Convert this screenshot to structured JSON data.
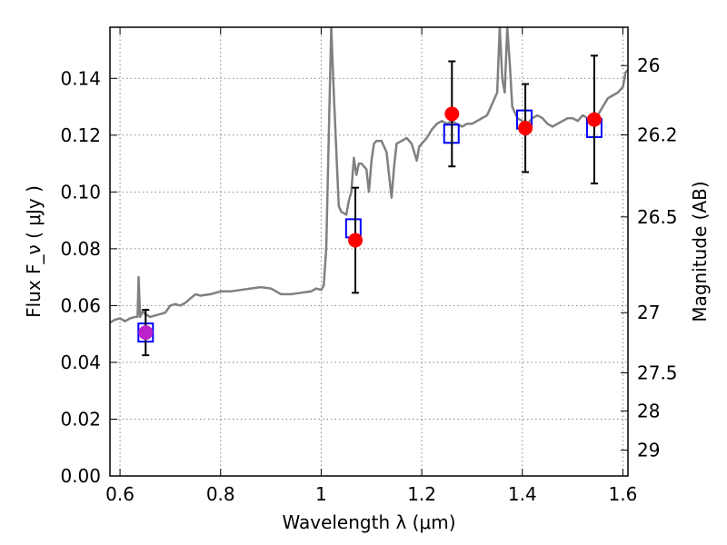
{
  "chart_data": {
    "type": "scatter",
    "xlabel": "Wavelength  λ (μm)",
    "ylabel_left": "Flux  F_ν  ( μJy )",
    "ylabel_right": "Magnitude (AB)",
    "xlim": [
      0.58,
      1.61
    ],
    "ylim": [
      0.0,
      0.158
    ],
    "grid": true,
    "x_ticks": [
      0.6,
      0.8,
      1.0,
      1.2,
      1.4,
      1.6
    ],
    "x_tick_labels": [
      "0.6",
      "0.8",
      "1",
      "1.2",
      "1.4",
      "1.6"
    ],
    "y_ticks": [
      0.0,
      0.02,
      0.04,
      0.06,
      0.08,
      0.1,
      0.12,
      0.14
    ],
    "y_tick_labels": [
      "0.00",
      "0.02",
      "0.04",
      "0.06",
      "0.08",
      "0.10",
      "0.12",
      "0.14"
    ],
    "right_ticks": [
      {
        "flux": 0.1445,
        "label": "26"
      },
      {
        "flux": 0.1201,
        "label": "26.2"
      },
      {
        "flux": 0.0912,
        "label": "26.5"
      },
      {
        "flux": 0.0575,
        "label": "27"
      },
      {
        "flux": 0.0363,
        "label": "27.5"
      },
      {
        "flux": 0.0229,
        "label": "28"
      },
      {
        "flux": 0.0091,
        "label": "29"
      }
    ],
    "series": [
      {
        "kind": "spectrum",
        "color": "#808080",
        "points": [
          [
            0.58,
            0.054
          ],
          [
            0.59,
            0.055
          ],
          [
            0.6,
            0.0555
          ],
          [
            0.61,
            0.0545
          ],
          [
            0.62,
            0.0555
          ],
          [
            0.63,
            0.056
          ],
          [
            0.635,
            0.056
          ],
          [
            0.637,
            0.07
          ],
          [
            0.64,
            0.056
          ],
          [
            0.645,
            0.058
          ],
          [
            0.65,
            0.057
          ],
          [
            0.66,
            0.056
          ],
          [
            0.67,
            0.0565
          ],
          [
            0.68,
            0.057
          ],
          [
            0.69,
            0.0575
          ],
          [
            0.7,
            0.06
          ],
          [
            0.71,
            0.0605
          ],
          [
            0.72,
            0.06
          ],
          [
            0.73,
            0.061
          ],
          [
            0.74,
            0.0625
          ],
          [
            0.75,
            0.064
          ],
          [
            0.76,
            0.0635
          ],
          [
            0.78,
            0.064
          ],
          [
            0.8,
            0.065
          ],
          [
            0.82,
            0.065
          ],
          [
            0.84,
            0.0655
          ],
          [
            0.86,
            0.066
          ],
          [
            0.88,
            0.0665
          ],
          [
            0.9,
            0.066
          ],
          [
            0.92,
            0.064
          ],
          [
            0.94,
            0.064
          ],
          [
            0.96,
            0.0645
          ],
          [
            0.98,
            0.065
          ],
          [
            0.99,
            0.066
          ],
          [
            1.0,
            0.0655
          ],
          [
            1.005,
            0.067
          ],
          [
            1.01,
            0.08
          ],
          [
            1.02,
            0.158
          ],
          [
            1.025,
            0.135
          ],
          [
            1.03,
            0.115
          ],
          [
            1.035,
            0.095
          ],
          [
            1.04,
            0.093
          ],
          [
            1.05,
            0.092
          ],
          [
            1.055,
            0.097
          ],
          [
            1.06,
            0.1
          ],
          [
            1.065,
            0.112
          ],
          [
            1.07,
            0.106
          ],
          [
            1.075,
            0.11
          ],
          [
            1.08,
            0.11
          ],
          [
            1.09,
            0.108
          ],
          [
            1.095,
            0.1
          ],
          [
            1.1,
            0.111
          ],
          [
            1.105,
            0.117
          ],
          [
            1.11,
            0.118
          ],
          [
            1.12,
            0.118
          ],
          [
            1.13,
            0.114
          ],
          [
            1.135,
            0.106
          ],
          [
            1.14,
            0.098
          ],
          [
            1.145,
            0.109
          ],
          [
            1.15,
            0.117
          ],
          [
            1.16,
            0.118
          ],
          [
            1.17,
            0.119
          ],
          [
            1.18,
            0.117
          ],
          [
            1.19,
            0.111
          ],
          [
            1.195,
            0.116
          ],
          [
            1.2,
            0.117
          ],
          [
            1.21,
            0.119
          ],
          [
            1.22,
            0.122
          ],
          [
            1.23,
            0.124
          ],
          [
            1.24,
            0.125
          ],
          [
            1.25,
            0.124
          ],
          [
            1.26,
            0.125
          ],
          [
            1.27,
            0.124
          ],
          [
            1.28,
            0.123
          ],
          [
            1.29,
            0.124
          ],
          [
            1.3,
            0.124
          ],
          [
            1.31,
            0.125
          ],
          [
            1.32,
            0.126
          ],
          [
            1.33,
            0.127
          ],
          [
            1.34,
            0.131
          ],
          [
            1.35,
            0.135
          ],
          [
            1.355,
            0.158
          ],
          [
            1.36,
            0.14
          ],
          [
            1.365,
            0.135
          ],
          [
            1.37,
            0.158
          ],
          [
            1.375,
            0.145
          ],
          [
            1.38,
            0.13
          ],
          [
            1.39,
            0.126
          ],
          [
            1.4,
            0.125
          ],
          [
            1.41,
            0.124
          ],
          [
            1.42,
            0.126
          ],
          [
            1.43,
            0.127
          ],
          [
            1.44,
            0.126
          ],
          [
            1.45,
            0.124
          ],
          [
            1.46,
            0.123
          ],
          [
            1.47,
            0.124
          ],
          [
            1.48,
            0.125
          ],
          [
            1.49,
            0.126
          ],
          [
            1.5,
            0.126
          ],
          [
            1.51,
            0.125
          ],
          [
            1.52,
            0.127
          ],
          [
            1.53,
            0.126
          ],
          [
            1.54,
            0.125
          ],
          [
            1.55,
            0.127
          ],
          [
            1.56,
            0.13
          ],
          [
            1.57,
            0.133
          ],
          [
            1.58,
            0.134
          ],
          [
            1.59,
            0.135
          ],
          [
            1.6,
            0.137
          ],
          [
            1.605,
            0.142
          ],
          [
            1.61,
            0.143
          ]
        ]
      },
      {
        "kind": "model_boxes",
        "color": "#0000ff",
        "points": [
          [
            0.651,
            0.0505
          ],
          [
            1.064,
            0.0872
          ],
          [
            1.259,
            0.1205
          ],
          [
            1.404,
            0.1255
          ],
          [
            1.543,
            0.1225
          ]
        ]
      },
      {
        "kind": "observed",
        "color": "#ff0000",
        "points": [
          {
            "x": 0.651,
            "y": 0.0505,
            "err": 0.008,
            "color": "#bb22cc"
          },
          {
            "x": 1.068,
            "y": 0.083,
            "err": 0.0185
          },
          {
            "x": 1.26,
            "y": 0.1275,
            "err": 0.0185
          },
          {
            "x": 1.406,
            "y": 0.1225,
            "err": 0.0155
          },
          {
            "x": 1.543,
            "y": 0.1255,
            "err": 0.0225
          }
        ]
      }
    ]
  }
}
